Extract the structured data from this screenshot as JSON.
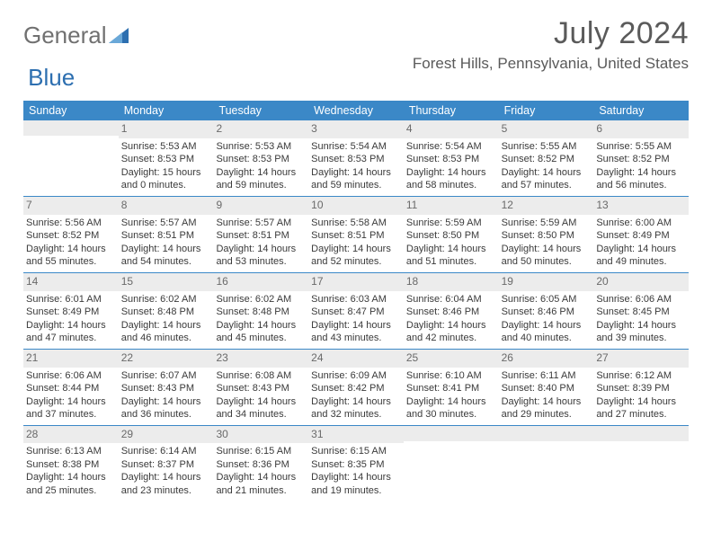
{
  "brand": {
    "part1": "General",
    "part2": "Blue"
  },
  "title": "July 2024",
  "location": "Forest Hills, Pennsylvania, United States",
  "colors": {
    "header_bg": "#3b88c7",
    "band_bg": "#ececec",
    "text": "#3a3a3a",
    "title_text": "#5a5a5a",
    "logo_text": "#707070",
    "logo_accent": "#2d6fb0"
  },
  "dow": [
    "Sunday",
    "Monday",
    "Tuesday",
    "Wednesday",
    "Thursday",
    "Friday",
    "Saturday"
  ],
  "weeks": [
    [
      {
        "n": "",
        "sr": "",
        "ss": "",
        "dl": ""
      },
      {
        "n": "1",
        "sr": "Sunrise: 5:53 AM",
        "ss": "Sunset: 8:53 PM",
        "dl": "Daylight: 15 hours and 0 minutes."
      },
      {
        "n": "2",
        "sr": "Sunrise: 5:53 AM",
        "ss": "Sunset: 8:53 PM",
        "dl": "Daylight: 14 hours and 59 minutes."
      },
      {
        "n": "3",
        "sr": "Sunrise: 5:54 AM",
        "ss": "Sunset: 8:53 PM",
        "dl": "Daylight: 14 hours and 59 minutes."
      },
      {
        "n": "4",
        "sr": "Sunrise: 5:54 AM",
        "ss": "Sunset: 8:53 PM",
        "dl": "Daylight: 14 hours and 58 minutes."
      },
      {
        "n": "5",
        "sr": "Sunrise: 5:55 AM",
        "ss": "Sunset: 8:52 PM",
        "dl": "Daylight: 14 hours and 57 minutes."
      },
      {
        "n": "6",
        "sr": "Sunrise: 5:55 AM",
        "ss": "Sunset: 8:52 PM",
        "dl": "Daylight: 14 hours and 56 minutes."
      }
    ],
    [
      {
        "n": "7",
        "sr": "Sunrise: 5:56 AM",
        "ss": "Sunset: 8:52 PM",
        "dl": "Daylight: 14 hours and 55 minutes."
      },
      {
        "n": "8",
        "sr": "Sunrise: 5:57 AM",
        "ss": "Sunset: 8:51 PM",
        "dl": "Daylight: 14 hours and 54 minutes."
      },
      {
        "n": "9",
        "sr": "Sunrise: 5:57 AM",
        "ss": "Sunset: 8:51 PM",
        "dl": "Daylight: 14 hours and 53 minutes."
      },
      {
        "n": "10",
        "sr": "Sunrise: 5:58 AM",
        "ss": "Sunset: 8:51 PM",
        "dl": "Daylight: 14 hours and 52 minutes."
      },
      {
        "n": "11",
        "sr": "Sunrise: 5:59 AM",
        "ss": "Sunset: 8:50 PM",
        "dl": "Daylight: 14 hours and 51 minutes."
      },
      {
        "n": "12",
        "sr": "Sunrise: 5:59 AM",
        "ss": "Sunset: 8:50 PM",
        "dl": "Daylight: 14 hours and 50 minutes."
      },
      {
        "n": "13",
        "sr": "Sunrise: 6:00 AM",
        "ss": "Sunset: 8:49 PM",
        "dl": "Daylight: 14 hours and 49 minutes."
      }
    ],
    [
      {
        "n": "14",
        "sr": "Sunrise: 6:01 AM",
        "ss": "Sunset: 8:49 PM",
        "dl": "Daylight: 14 hours and 47 minutes."
      },
      {
        "n": "15",
        "sr": "Sunrise: 6:02 AM",
        "ss": "Sunset: 8:48 PM",
        "dl": "Daylight: 14 hours and 46 minutes."
      },
      {
        "n": "16",
        "sr": "Sunrise: 6:02 AM",
        "ss": "Sunset: 8:48 PM",
        "dl": "Daylight: 14 hours and 45 minutes."
      },
      {
        "n": "17",
        "sr": "Sunrise: 6:03 AM",
        "ss": "Sunset: 8:47 PM",
        "dl": "Daylight: 14 hours and 43 minutes."
      },
      {
        "n": "18",
        "sr": "Sunrise: 6:04 AM",
        "ss": "Sunset: 8:46 PM",
        "dl": "Daylight: 14 hours and 42 minutes."
      },
      {
        "n": "19",
        "sr": "Sunrise: 6:05 AM",
        "ss": "Sunset: 8:46 PM",
        "dl": "Daylight: 14 hours and 40 minutes."
      },
      {
        "n": "20",
        "sr": "Sunrise: 6:06 AM",
        "ss": "Sunset: 8:45 PM",
        "dl": "Daylight: 14 hours and 39 minutes."
      }
    ],
    [
      {
        "n": "21",
        "sr": "Sunrise: 6:06 AM",
        "ss": "Sunset: 8:44 PM",
        "dl": "Daylight: 14 hours and 37 minutes."
      },
      {
        "n": "22",
        "sr": "Sunrise: 6:07 AM",
        "ss": "Sunset: 8:43 PM",
        "dl": "Daylight: 14 hours and 36 minutes."
      },
      {
        "n": "23",
        "sr": "Sunrise: 6:08 AM",
        "ss": "Sunset: 8:43 PM",
        "dl": "Daylight: 14 hours and 34 minutes."
      },
      {
        "n": "24",
        "sr": "Sunrise: 6:09 AM",
        "ss": "Sunset: 8:42 PM",
        "dl": "Daylight: 14 hours and 32 minutes."
      },
      {
        "n": "25",
        "sr": "Sunrise: 6:10 AM",
        "ss": "Sunset: 8:41 PM",
        "dl": "Daylight: 14 hours and 30 minutes."
      },
      {
        "n": "26",
        "sr": "Sunrise: 6:11 AM",
        "ss": "Sunset: 8:40 PM",
        "dl": "Daylight: 14 hours and 29 minutes."
      },
      {
        "n": "27",
        "sr": "Sunrise: 6:12 AM",
        "ss": "Sunset: 8:39 PM",
        "dl": "Daylight: 14 hours and 27 minutes."
      }
    ],
    [
      {
        "n": "28",
        "sr": "Sunrise: 6:13 AM",
        "ss": "Sunset: 8:38 PM",
        "dl": "Daylight: 14 hours and 25 minutes."
      },
      {
        "n": "29",
        "sr": "Sunrise: 6:14 AM",
        "ss": "Sunset: 8:37 PM",
        "dl": "Daylight: 14 hours and 23 minutes."
      },
      {
        "n": "30",
        "sr": "Sunrise: 6:15 AM",
        "ss": "Sunset: 8:36 PM",
        "dl": "Daylight: 14 hours and 21 minutes."
      },
      {
        "n": "31",
        "sr": "Sunrise: 6:15 AM",
        "ss": "Sunset: 8:35 PM",
        "dl": "Daylight: 14 hours and 19 minutes."
      },
      {
        "n": "",
        "sr": "",
        "ss": "",
        "dl": ""
      },
      {
        "n": "",
        "sr": "",
        "ss": "",
        "dl": ""
      },
      {
        "n": "",
        "sr": "",
        "ss": "",
        "dl": ""
      }
    ]
  ]
}
